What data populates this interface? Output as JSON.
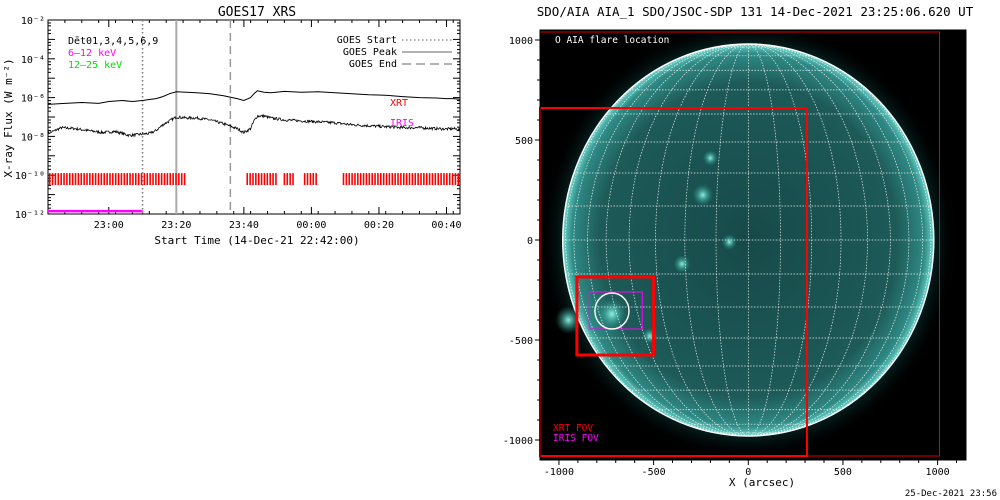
{
  "footer_timestamp": "25-Dec-2021 23:56",
  "chart_data": [
    {
      "type": "line",
      "title": "GOES17 XRS",
      "xlabel": "Start Time (14-Dec-21 22:42:00)",
      "ylabel": "X-ray Flux (W m⁻²)",
      "x_unit": "minutes since 14-Dec-21 22:42:00",
      "xlim": [
        0,
        122
      ],
      "ylog": true,
      "ylim": [
        1e-12,
        0.01
      ],
      "xticks": [
        {
          "x": 18,
          "label": "23:00"
        },
        {
          "x": 38,
          "label": "23:20"
        },
        {
          "x": 58,
          "label": "23:40"
        },
        {
          "x": 78,
          "label": "00:00"
        },
        {
          "x": 98,
          "label": "00:20"
        },
        {
          "x": 118,
          "label": "00:40"
        }
      ],
      "yticks": [
        {
          "exp": -12,
          "label": "10⁻¹²"
        },
        {
          "exp": -10,
          "label": "10⁻¹⁰"
        },
        {
          "exp": -8,
          "label": "10⁻⁸"
        },
        {
          "exp": -6,
          "label": "10⁻⁶"
        },
        {
          "exp": -4,
          "label": "10⁻⁴"
        },
        {
          "exp": -2,
          "label": "10⁻²"
        }
      ],
      "legend_left": [
        {
          "text": "Dēt01,3,4,5,6,9",
          "color": "#000000"
        },
        {
          "text": "6–12 keV",
          "color": "#ff00ff"
        },
        {
          "text": "12–25 keV",
          "color": "#00dd00"
        }
      ],
      "legend_right": [
        {
          "text": "GOES Start",
          "style": "dotted"
        },
        {
          "text": "GOES Peak",
          "style": "solid"
        },
        {
          "text": "GOES End",
          "style": "dashed"
        }
      ],
      "instrument_labels": [
        {
          "text": "XRT",
          "color": "#ff0000"
        },
        {
          "text": "IRIS",
          "color": "#ff00ff"
        }
      ],
      "series": [
        {
          "x": [
            0,
            5,
            10,
            15,
            18,
            22,
            25,
            28,
            30,
            32,
            34,
            36,
            38,
            41,
            44,
            48,
            52,
            56,
            58,
            60,
            61,
            62,
            64,
            66,
            70,
            75,
            80,
            85,
            90,
            95,
            100,
            105,
            110,
            115,
            118,
            120,
            122
          ],
          "log_y": [
            -6.35,
            -6.3,
            -6.25,
            -6.3,
            -6.2,
            -6.15,
            -6.2,
            -6.15,
            -6.1,
            -6.05,
            -5.95,
            -5.8,
            -5.7,
            -5.72,
            -5.75,
            -5.8,
            -5.9,
            -6.05,
            -6.15,
            -6.0,
            -5.8,
            -5.65,
            -5.72,
            -5.75,
            -5.68,
            -5.72,
            -5.7,
            -5.75,
            -5.8,
            -5.85,
            -5.88,
            -5.95,
            -6.0,
            -6.02,
            -6.05,
            -6.05,
            -6.08
          ],
          "color": "#000000"
        },
        {
          "x": [
            0,
            4,
            8,
            12,
            16,
            20,
            24,
            27,
            30,
            32,
            34,
            36,
            38,
            41,
            44,
            48,
            52,
            56,
            58,
            60,
            61,
            62,
            64,
            66,
            70,
            75,
            80,
            85,
            90,
            95,
            100,
            105,
            110,
            115,
            118,
            120,
            122
          ],
          "log_y": [
            -7.85,
            -7.55,
            -7.6,
            -7.7,
            -7.8,
            -7.75,
            -7.95,
            -7.9,
            -7.85,
            -7.7,
            -7.4,
            -7.2,
            -7.0,
            -7.05,
            -7.05,
            -7.15,
            -7.35,
            -7.6,
            -7.8,
            -7.6,
            -7.2,
            -6.95,
            -6.95,
            -7.05,
            -7.15,
            -7.2,
            -7.25,
            -7.3,
            -7.4,
            -7.45,
            -7.5,
            -7.55,
            -7.55,
            -7.6,
            -7.62,
            -7.6,
            -7.65
          ],
          "color": "#000000",
          "noisy": true
        }
      ],
      "vlines": [
        {
          "x": 28,
          "style": "dotted",
          "color": "#777777"
        },
        {
          "x": 38,
          "style": "solid",
          "color": "#aaaaaa"
        },
        {
          "x": 54,
          "style": "dashed",
          "color": "#999999"
        }
      ],
      "xrt_obs": {
        "log_y": -10.2,
        "color": "#ff0000",
        "ranges": [
          [
            0.5,
            41
          ],
          [
            59,
            68
          ],
          [
            70,
            73
          ],
          [
            76,
            80
          ],
          [
            87.5,
            121.5
          ]
        ],
        "tick_every": 0.85
      },
      "iris_obs": {
        "log_y": -11.85,
        "color": "#ff00ff",
        "ranges": [
          [
            0,
            28
          ]
        ]
      }
    },
    {
      "type": "scatter",
      "title": "SDO/AIA AIA_1 SDO/JSOC-SDP 131 14-Dec-2021 23:25:06.620 UT",
      "xlabel": "X (arcsec)",
      "ylabel": "",
      "xlim": [
        -1100,
        1150
      ],
      "ylim": [
        -1100,
        1050
      ],
      "xticks": [
        -1000,
        -500,
        0,
        500,
        1000
      ],
      "yticks": [
        -1000,
        -500,
        0,
        500,
        1000
      ],
      "solar_radius": 980,
      "grid_step_deg": 10,
      "legend_marker": "O AIA flare location",
      "fov_labels": [
        {
          "text": "XRT FOV",
          "color": "#ff0000"
        },
        {
          "text": "IRIS FOV",
          "color": "#ff00ff"
        }
      ],
      "flare_location": {
        "x": -720,
        "y": -355,
        "radius": 90
      },
      "boxes": [
        {
          "name": "xrt-outer-fov",
          "x0": -1100,
          "x1": 1010,
          "y0": -1080,
          "y1": 1040,
          "color": "#dd0000",
          "width": 1
        },
        {
          "name": "xrt-full-fov",
          "x0": -1100,
          "x1": 310,
          "y0": -1080,
          "y1": 660,
          "color": "#ff0000",
          "width": 2
        },
        {
          "name": "xrt-partial-fov",
          "x0": -905,
          "x1": -500,
          "y0": -575,
          "y1": -185,
          "color": "#ff0000",
          "width": 3
        },
        {
          "name": "iris-fov",
          "x0": -840,
          "x1": -560,
          "y0": -445,
          "y1": -260,
          "color": "#ff00ff",
          "width": 1
        }
      ],
      "bright_regions": [
        {
          "x": -240,
          "y": 225,
          "r": 55
        },
        {
          "x": -200,
          "y": 410,
          "r": 40
        },
        {
          "x": -350,
          "y": -120,
          "r": 45
        },
        {
          "x": -720,
          "y": -370,
          "r": 80
        },
        {
          "x": -950,
          "y": -400,
          "r": 70
        },
        {
          "x": -520,
          "y": -480,
          "r": 40
        },
        {
          "x": -100,
          "y": -10,
          "r": 40
        }
      ]
    }
  ]
}
